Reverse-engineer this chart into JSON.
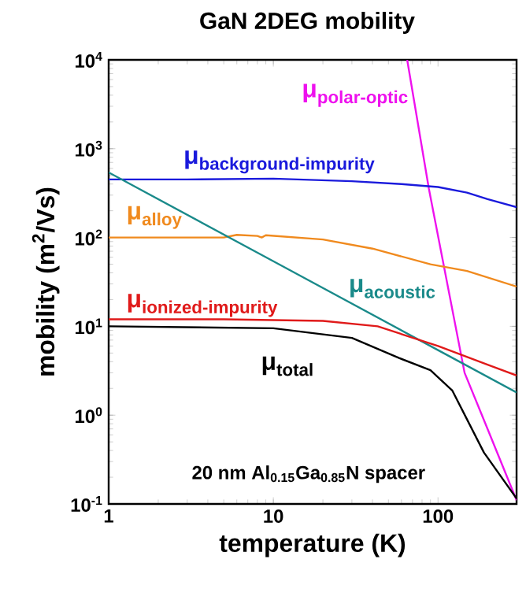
{
  "chart_data": {
    "type": "line",
    "title": "GaN 2DEG mobility",
    "xlabel": "temperature (K)",
    "ylabel": "mobility (m$^{2}$/Vs)",
    "log": "xy",
    "grid": false,
    "xlim": [
      1,
      300
    ],
    "ylim": [
      0.1,
      10000
    ],
    "xticks": [
      1,
      10,
      100
    ],
    "yticks": [
      {
        "value": 0.1,
        "label": "10$^{-1}$"
      },
      {
        "value": 1,
        "label": "10$^{0}$"
      },
      {
        "value": 10,
        "label": "10$^{1}$"
      },
      {
        "value": 100,
        "label": "10$^{2}$"
      },
      {
        "value": 1000,
        "label": "10$^{3}$"
      },
      {
        "value": 10000,
        "label": "10$^{4}$"
      }
    ],
    "annotations": [
      "20 nm Al$_{0.15}$Ga$_{0.85}$N spacer"
    ],
    "series": [
      {
        "name": "\\text{\\bfseries μ}_{\\text{\\bfseries polar-optic}}",
        "color": "#ee11ee",
        "x": [
          65,
          88,
          145,
          200,
          300
        ],
        "values": [
          10000,
          355,
          3,
          0.7,
          0.11
        ]
      },
      {
        "name": "\\text{\\bfseries μ}_{\\text{\\bfseries background-impurity}}",
        "color": "#1a1adc",
        "x": [
          1,
          3,
          10,
          30,
          60,
          100,
          150,
          200,
          300
        ],
        "values": [
          450,
          450,
          460,
          430,
          400,
          370,
          320,
          270,
          220
        ]
      },
      {
        "name": "\\text{\\bfseries μ}_{\\text{\\bfseries alloy}}",
        "color": "#f08a1e",
        "x": [
          1,
          5,
          6,
          8,
          8.5,
          9,
          20,
          40,
          90,
          150,
          300
        ],
        "values": [
          100,
          100,
          107,
          104,
          100,
          106,
          95,
          75,
          50,
          42,
          28
        ]
      },
      {
        "name": "\\text{\\bfseries μ}_{\\text{\\bfseries acoustic}}",
        "color": "#1a8a8a",
        "x": [
          1,
          10,
          100,
          300
        ],
        "values": [
          540,
          54,
          5.4,
          1.8
        ]
      },
      {
        "name": "\\text{\\bfseries μ}_{\\text{\\bfseries ionized-impurity}}",
        "color": "#e01a1a",
        "x": [
          1,
          5,
          20,
          43,
          100,
          200,
          300
        ],
        "values": [
          12,
          12,
          11.5,
          10,
          6,
          3.7,
          2.8
        ]
      },
      {
        "name": "\\text{\\bfseries μ}_{\\text{\\bfseries total}}",
        "color": "#000000",
        "x": [
          1,
          10,
          30,
          58,
          90,
          122,
          190,
          300
        ],
        "values": [
          10,
          9.5,
          7.4,
          4.4,
          3.2,
          1.9,
          0.38,
          0.115
        ]
      }
    ]
  }
}
